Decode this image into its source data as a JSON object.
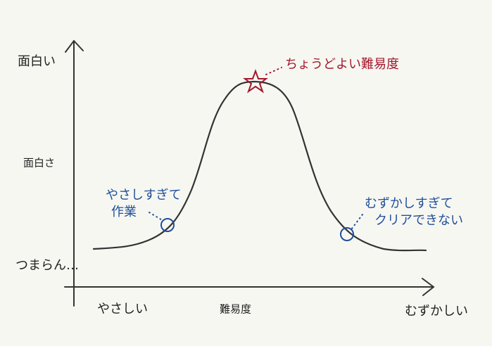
{
  "y_axis": {
    "top_label": "面白い",
    "label": "面白さ",
    "bottom_label": "つまらん…"
  },
  "x_axis": {
    "left_label": "やさしい",
    "label": "難易度",
    "right_label": "むずかしい"
  },
  "annotations": {
    "peak": "ちょうどよい難易度",
    "easy": [
      "やさしすぎて",
      "作業"
    ],
    "hard": [
      "むずかしすぎて",
      "クリアできない"
    ]
  }
}
